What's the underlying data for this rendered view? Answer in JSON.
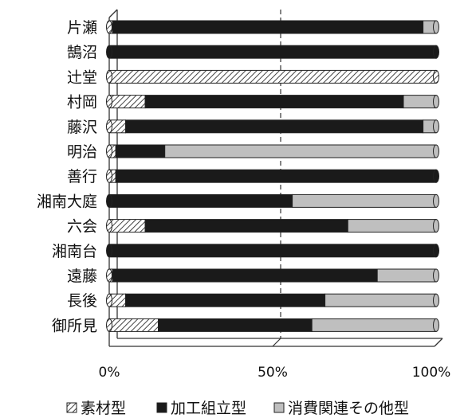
{
  "chart_data": {
    "type": "bar",
    "orientation": "horizontal",
    "stacked": "percent",
    "categories": [
      "片瀬",
      "鵠沼",
      "辻堂",
      "村岡",
      "藤沢",
      "明治",
      "善行",
      "湘南大庭",
      "六会",
      "湘南台",
      "遠藤",
      "長後",
      "御所見"
    ],
    "series": [
      {
        "name": "素材型",
        "pattern": "diagonal-hatch",
        "values": [
          1,
          0,
          100,
          11,
          5,
          2,
          2,
          0,
          11,
          0,
          1,
          5,
          15
        ]
      },
      {
        "name": "加工組立型",
        "color": "#1a1a1a",
        "values": [
          95,
          100,
          0,
          79,
          91,
          15,
          98,
          56,
          62,
          100,
          81,
          61,
          47
        ]
      },
      {
        "name": "消費関連その他型",
        "color": "#bfbfbf",
        "values": [
          4,
          0,
          0,
          10,
          4,
          83,
          0,
          44,
          27,
          0,
          18,
          34,
          38
        ]
      }
    ],
    "xlim": [
      0,
      100
    ],
    "xticks": [
      "0%",
      "50%",
      "100%"
    ],
    "gridline_at": 50,
    "legend_position": "bottom"
  }
}
